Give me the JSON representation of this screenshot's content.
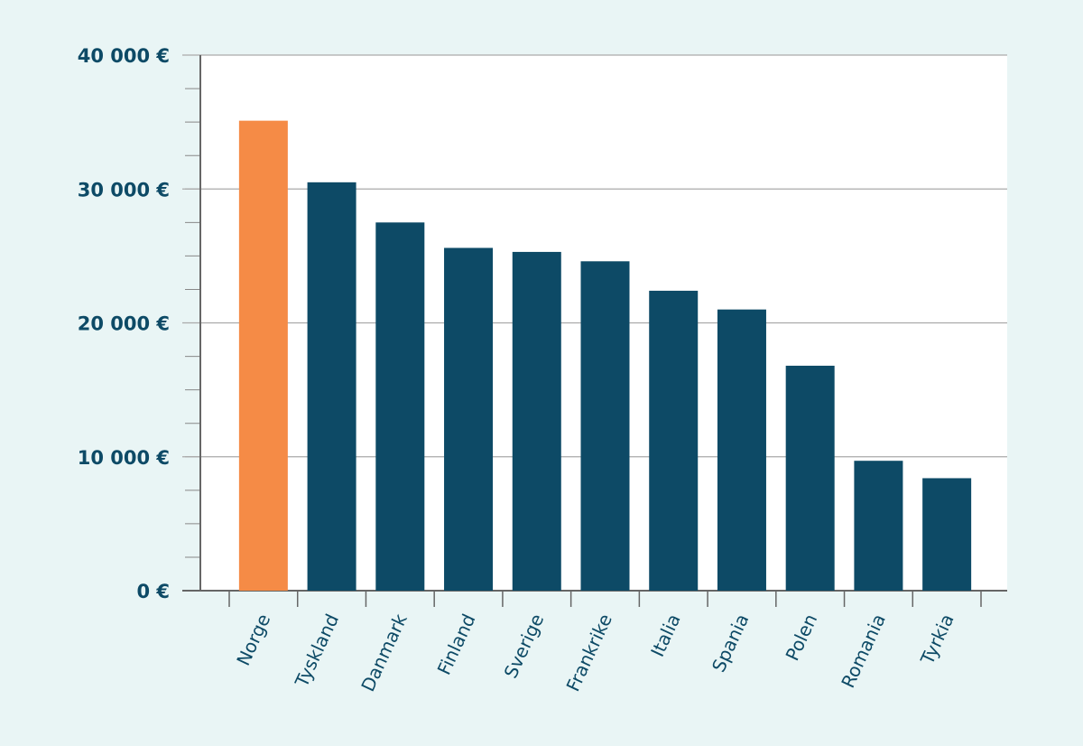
{
  "chart_data": {
    "type": "bar",
    "title": "",
    "xlabel": "",
    "ylabel": "",
    "categories": [
      "Norge",
      "Tyskland",
      "Danmark",
      "Finland",
      "Sverige",
      "Frankrike",
      "Italia",
      "Spania",
      "Polen",
      "Romania",
      "Tyrkia"
    ],
    "values": [
      35100,
      30500,
      27500,
      25600,
      25300,
      24600,
      22400,
      21000,
      16800,
      9700,
      8400
    ],
    "highlight_index": 0,
    "ylim": [
      0,
      40000
    ],
    "yticks": [
      0,
      10000,
      20000,
      30000,
      40000
    ],
    "ytick_labels": [
      "0 €",
      "10 000 €",
      "20 000 €",
      "30 000 €",
      "40 000 €"
    ],
    "grid": true,
    "colors": {
      "highlight": "#f58b46",
      "default": "#0d4a66",
      "background": "#e9f5f5",
      "plot": "#ffffff",
      "grid": "#aaaaaa"
    }
  }
}
